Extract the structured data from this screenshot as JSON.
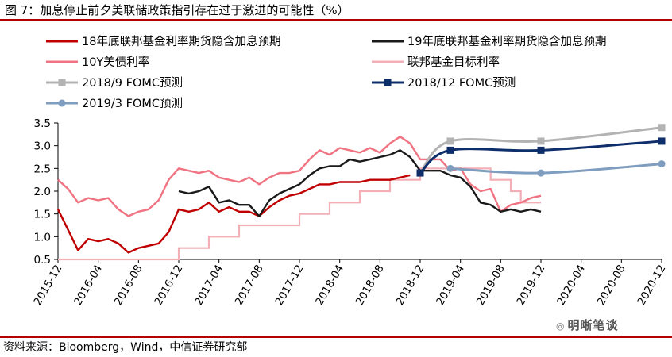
{
  "title": "图 7：加息停止前夕美联储政策指引存在过于激进的可能性（%）",
  "source": "资料来源：Bloomberg，Wind，中信证券研究部",
  "watermark": "明晰笔谈",
  "chart_data": {
    "type": "line",
    "ylim": [
      0.5,
      3.5
    ],
    "yticks": [
      "0.5",
      "1.0",
      "1.5",
      "2.0",
      "2.5",
      "3.0",
      "3.5"
    ],
    "xlim": [
      "2015-12",
      "2020-12"
    ],
    "xticks": [
      "2015-12",
      "2016-04",
      "2016-08",
      "2016-12",
      "2017-04",
      "2017-08",
      "2017-12",
      "2018-04",
      "2018-08",
      "2018-12",
      "2019-04",
      "2019-08",
      "2019-12",
      "2020-04",
      "2020-08",
      "2020-12"
    ],
    "grid": false,
    "legend": "top, two columns",
    "series": [
      {
        "name": "18年底联邦基金利率期货隐含加息预期",
        "color": "#c00000",
        "style": "line",
        "points": [
          [
            "2015-12",
            1.6
          ],
          [
            "2016-01",
            1.15
          ],
          [
            "2016-02",
            0.7
          ],
          [
            "2016-03",
            0.95
          ],
          [
            "2016-04",
            0.9
          ],
          [
            "2016-05",
            0.95
          ],
          [
            "2016-06",
            0.85
          ],
          [
            "2016-07",
            0.65
          ],
          [
            "2016-08",
            0.75
          ],
          [
            "2016-09",
            0.8
          ],
          [
            "2016-10",
            0.85
          ],
          [
            "2016-11",
            1.1
          ],
          [
            "2016-12",
            1.6
          ],
          [
            "2017-01",
            1.55
          ],
          [
            "2017-02",
            1.6
          ],
          [
            "2017-03",
            1.75
          ],
          [
            "2017-04",
            1.55
          ],
          [
            "2017-05",
            1.65
          ],
          [
            "2017-06",
            1.55
          ],
          [
            "2017-07",
            1.55
          ],
          [
            "2017-08",
            1.45
          ],
          [
            "2017-09",
            1.65
          ],
          [
            "2017-10",
            1.8
          ],
          [
            "2017-11",
            1.9
          ],
          [
            "2017-12",
            1.95
          ],
          [
            "2018-01",
            2.05
          ],
          [
            "2018-02",
            2.15
          ],
          [
            "2018-03",
            2.15
          ],
          [
            "2018-04",
            2.2
          ],
          [
            "2018-05",
            2.2
          ],
          [
            "2018-06",
            2.2
          ],
          [
            "2018-07",
            2.25
          ],
          [
            "2018-08",
            2.25
          ],
          [
            "2018-09",
            2.25
          ],
          [
            "2018-10",
            2.3
          ],
          [
            "2018-11",
            2.35
          ]
        ]
      },
      {
        "name": "19年底联邦基金利率期货隐含加息预期",
        "color": "#1a1a1a",
        "style": "line",
        "points": [
          [
            "2016-12",
            2.0
          ],
          [
            "2017-01",
            1.95
          ],
          [
            "2017-02",
            2.0
          ],
          [
            "2017-03",
            2.1
          ],
          [
            "2017-04",
            1.75
          ],
          [
            "2017-05",
            1.8
          ],
          [
            "2017-06",
            1.7
          ],
          [
            "2017-07",
            1.7
          ],
          [
            "2017-08",
            1.45
          ],
          [
            "2017-09",
            1.8
          ],
          [
            "2017-10",
            1.95
          ],
          [
            "2017-11",
            2.05
          ],
          [
            "2017-12",
            2.15
          ],
          [
            "2018-01",
            2.35
          ],
          [
            "2018-02",
            2.5
          ],
          [
            "2018-03",
            2.55
          ],
          [
            "2018-04",
            2.55
          ],
          [
            "2018-05",
            2.7
          ],
          [
            "2018-06",
            2.65
          ],
          [
            "2018-07",
            2.7
          ],
          [
            "2018-08",
            2.75
          ],
          [
            "2018-09",
            2.8
          ],
          [
            "2018-10",
            2.9
          ],
          [
            "2018-11",
            2.75
          ],
          [
            "2018-12",
            2.45
          ],
          [
            "2019-01",
            2.45
          ],
          [
            "2019-02",
            2.45
          ],
          [
            "2019-03",
            2.35
          ],
          [
            "2019-04",
            2.3
          ],
          [
            "2019-05",
            2.1
          ],
          [
            "2019-06",
            1.75
          ],
          [
            "2019-07",
            1.7
          ],
          [
            "2019-08",
            1.55
          ],
          [
            "2019-09",
            1.6
          ],
          [
            "2019-10",
            1.55
          ],
          [
            "2019-11",
            1.6
          ],
          [
            "2019-12",
            1.55
          ]
        ]
      },
      {
        "name": "10Y美债利率",
        "color": "#f07382",
        "style": "line",
        "points": [
          [
            "2015-12",
            2.25
          ],
          [
            "2016-01",
            2.05
          ],
          [
            "2016-02",
            1.75
          ],
          [
            "2016-03",
            1.85
          ],
          [
            "2016-04",
            1.8
          ],
          [
            "2016-05",
            1.85
          ],
          [
            "2016-06",
            1.6
          ],
          [
            "2016-07",
            1.45
          ],
          [
            "2016-08",
            1.55
          ],
          [
            "2016-09",
            1.6
          ],
          [
            "2016-10",
            1.8
          ],
          [
            "2016-11",
            2.25
          ],
          [
            "2016-12",
            2.5
          ],
          [
            "2017-01",
            2.45
          ],
          [
            "2017-02",
            2.4
          ],
          [
            "2017-03",
            2.45
          ],
          [
            "2017-04",
            2.3
          ],
          [
            "2017-05",
            2.25
          ],
          [
            "2017-06",
            2.2
          ],
          [
            "2017-07",
            2.3
          ],
          [
            "2017-08",
            2.15
          ],
          [
            "2017-09",
            2.3
          ],
          [
            "2017-10",
            2.4
          ],
          [
            "2017-11",
            2.4
          ],
          [
            "2017-12",
            2.45
          ],
          [
            "2018-01",
            2.7
          ],
          [
            "2018-02",
            2.9
          ],
          [
            "2018-03",
            2.8
          ],
          [
            "2018-04",
            2.95
          ],
          [
            "2018-05",
            2.9
          ],
          [
            "2018-06",
            2.85
          ],
          [
            "2018-07",
            2.95
          ],
          [
            "2018-08",
            2.85
          ],
          [
            "2018-09",
            3.05
          ],
          [
            "2018-10",
            3.2
          ],
          [
            "2018-11",
            3.05
          ],
          [
            "2018-12",
            2.7
          ],
          [
            "2019-01",
            2.7
          ],
          [
            "2019-02",
            2.7
          ],
          [
            "2019-03",
            2.45
          ],
          [
            "2019-04",
            2.5
          ],
          [
            "2019-05",
            2.15
          ],
          [
            "2019-06",
            2.0
          ],
          [
            "2019-07",
            2.05
          ],
          [
            "2019-08",
            1.55
          ],
          [
            "2019-09",
            1.7
          ],
          [
            "2019-10",
            1.75
          ],
          [
            "2019-11",
            1.85
          ],
          [
            "2019-12",
            1.9
          ]
        ]
      },
      {
        "name": "联邦基金目标利率",
        "color": "#f4aeb5",
        "style": "step",
        "points": [
          [
            "2015-12",
            0.5
          ],
          [
            "2016-12",
            0.75
          ],
          [
            "2017-03",
            1.0
          ],
          [
            "2017-06",
            1.25
          ],
          [
            "2017-12",
            1.5
          ],
          [
            "2018-03",
            1.75
          ],
          [
            "2018-06",
            2.0
          ],
          [
            "2018-09",
            2.25
          ],
          [
            "2018-12",
            2.5
          ],
          [
            "2019-07",
            2.25
          ],
          [
            "2019-09",
            2.0
          ],
          [
            "2019-10",
            1.75
          ],
          [
            "2019-12",
            1.75
          ]
        ]
      },
      {
        "name": "2018/9 FOMC预测",
        "color": "#b3b3b3",
        "style": "marker",
        "marker": "square",
        "points": [
          [
            "2018-12",
            2.4
          ],
          [
            "2019-03",
            3.1
          ],
          [
            "2019-12",
            3.1
          ],
          [
            "2020-12",
            3.4
          ]
        ]
      },
      {
        "name": "2018/12 FOMC预测",
        "color": "#0d2d6b",
        "style": "marker",
        "marker": "square",
        "points": [
          [
            "2018-12",
            2.4
          ],
          [
            "2019-03",
            2.9
          ],
          [
            "2019-12",
            2.9
          ],
          [
            "2020-12",
            3.1
          ]
        ]
      },
      {
        "name": "2019/3 FOMC预测",
        "color": "#7f9dbf",
        "style": "marker",
        "marker": "circle",
        "points": [
          [
            "2019-03",
            2.5
          ],
          [
            "2019-12",
            2.4
          ],
          [
            "2020-12",
            2.6
          ]
        ]
      }
    ]
  }
}
